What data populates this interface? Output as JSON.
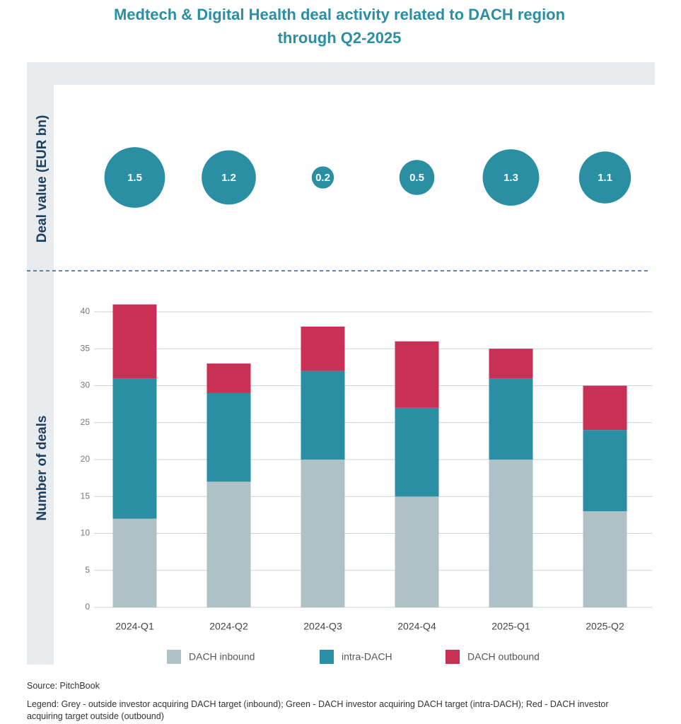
{
  "chart_data": [
    {
      "type": "bubble",
      "title": "Medtech & Digital Health deal activity related to DACH region through Q2-2025",
      "y_label": "Deal value (EUR bn)",
      "color": "#2a8fa3",
      "values": [
        1.5,
        1.2,
        0.2,
        0.5,
        1.3,
        1.1
      ]
    },
    {
      "type": "bar",
      "stacked": true,
      "y_label": "Number of deals",
      "categories": [
        "2024-Q1",
        "2024-Q2",
        "2024-Q3",
        "2024-Q4",
        "2025-Q1",
        "2025-Q2"
      ],
      "series": [
        {
          "name": "DACH inbound",
          "color": "#b0c0c7",
          "values": [
            12,
            17,
            20,
            15,
            20,
            13
          ]
        },
        {
          "name": "intra-DACH",
          "color": "#2a8fa3",
          "values": [
            19,
            12,
            12,
            12,
            11,
            11
          ]
        },
        {
          "name": "DACH outbound",
          "color": "#c93055",
          "values": [
            10,
            4,
            6,
            9,
            4,
            6
          ]
        }
      ],
      "ylim": [
        0,
        40
      ],
      "yticks": [
        0,
        5,
        10,
        15,
        20,
        25,
        30,
        35,
        40
      ],
      "grid": true
    }
  ],
  "source": "Source: PitchBook",
  "note": "Legend: Grey - outside investor acquiring DACH target (inbound); Green - DACH investor acquiring DACH target (intra-DACH); Red - DACH investor acquiring target outside (outbound)"
}
